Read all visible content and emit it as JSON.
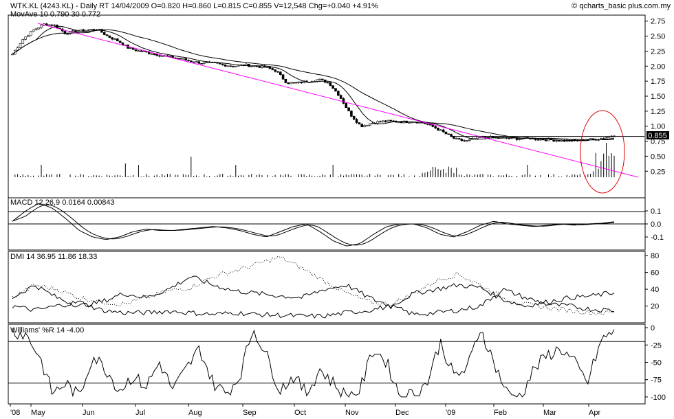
{
  "header": {
    "title_line": "WTK.KL (4243.KL) - Daily RT  14/04/2009  O=0.820  H=0.860  L=0.815  C=0.855  V=12,548  Chg=+0.040  +4.91%",
    "mov_ave_line": "MovAve 10  0.790  30  0.772",
    "copyright": "© qcharts_basic plus.com.my"
  },
  "chart_data": [
    {
      "type": "candlestick",
      "panel": "price",
      "title": "WTK.KL (4243.KL) - Daily RT",
      "last_price_label": "0.855",
      "y_ticks": [
        "2.75",
        "2.50",
        "2.25",
        "2.00",
        "1.75",
        "1.50",
        "1.25",
        "1.00",
        "0.75",
        "0.50",
        "0.25"
      ],
      "ylim": [
        0.15,
        2.85
      ],
      "x_labels": [
        "'08",
        "May",
        "Jun",
        "Jul",
        "Aug",
        "Sep",
        "Oct",
        "Nov",
        "Dec",
        "'09",
        "Feb",
        "Mar",
        "Apr"
      ],
      "close_path": [
        2.2,
        2.45,
        2.6,
        2.7,
        2.68,
        2.55,
        2.58,
        2.6,
        2.62,
        2.5,
        2.42,
        2.3,
        2.25,
        2.22,
        2.18,
        2.15,
        2.12,
        2.08,
        2.05,
        2.05,
        2.02,
        2.0,
        2.02,
        2.0,
        1.98,
        1.92,
        1.72,
        1.72,
        1.75,
        1.78,
        1.72,
        1.5,
        1.2,
        1.0,
        1.05,
        1.08,
        1.08,
        1.07,
        1.08,
        1.05,
        0.98,
        0.88,
        0.78,
        0.75,
        0.8,
        0.82,
        0.8,
        0.8,
        0.79,
        0.8,
        0.78,
        0.77,
        0.76,
        0.76,
        0.77,
        0.78,
        0.8,
        0.855
      ],
      "series": [
        {
          "name": "MovAve 10",
          "last": 0.79
        },
        {
          "name": "MovAve 30",
          "last": 0.772
        }
      ],
      "volume_panel": true,
      "annotations": [
        "downtrend line",
        "red ellipse around latest bars"
      ]
    },
    {
      "type": "line",
      "panel": "macd",
      "label_line": "MACD 12,26,9  0.0164  0.00843",
      "y_ticks": [
        "0.1",
        "0.0",
        "-0.1"
      ],
      "ylim": [
        -0.2,
        0.2
      ],
      "values": [
        0.02,
        0.1,
        0.16,
        0.12,
        0.04,
        -0.05,
        -0.1,
        -0.12,
        -0.1,
        -0.06,
        -0.04,
        -0.05,
        -0.05,
        -0.04,
        -0.03,
        -0.02,
        -0.03,
        -0.05,
        -0.08,
        -0.1,
        -0.06,
        -0.02,
        0.0,
        -0.06,
        -0.13,
        -0.17,
        -0.15,
        -0.08,
        -0.02,
        0.0,
        0.0,
        -0.03,
        -0.08,
        -0.1,
        -0.06,
        -0.01,
        0.02,
        0.0,
        -0.01,
        -0.02,
        -0.01,
        0.0,
        -0.01,
        0.0,
        0.005,
        0.0164
      ]
    },
    {
      "type": "line",
      "panel": "dmi",
      "label_line": "DMI 14  36.95  11.86  18.33",
      "y_ticks": [
        "80",
        "60",
        "40",
        "20"
      ],
      "ylim": [
        0,
        85
      ]
    },
    {
      "type": "line",
      "panel": "williams",
      "label_line": "Williams' %R 14  -4.00",
      "y_ticks": [
        "0",
        "-25",
        "-50",
        "-75",
        "-100"
      ],
      "ylim": [
        -110,
        5
      ]
    }
  ]
}
